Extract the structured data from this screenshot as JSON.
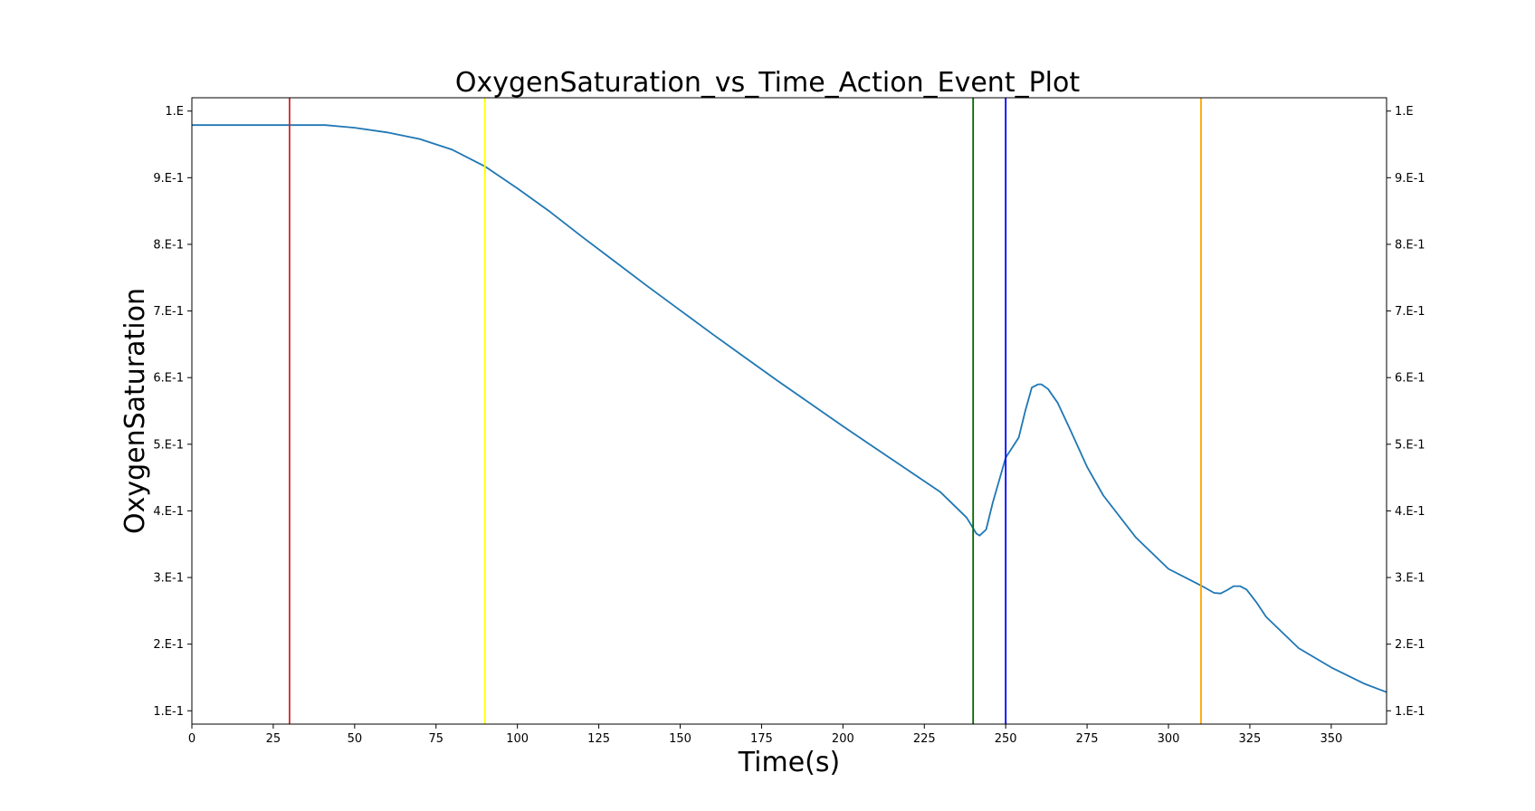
{
  "chart_data": {
    "type": "line",
    "title": "OxygenSaturation_vs_Time_Action_Event_Plot",
    "xlabel": "Time(s)",
    "ylabel": "OxygenSaturation",
    "xlim": [
      0,
      367
    ],
    "ylim": [
      0.08,
      1.02
    ],
    "x_ticks": [
      0,
      25,
      50,
      75,
      100,
      125,
      150,
      175,
      200,
      225,
      250,
      275,
      300,
      325,
      350
    ],
    "y_ticks": [
      {
        "value": 0.1,
        "label": "1.E-1"
      },
      {
        "value": 0.2,
        "label": "2.E-1"
      },
      {
        "value": 0.3,
        "label": "3.E-1"
      },
      {
        "value": 0.4,
        "label": "4.E-1"
      },
      {
        "value": 0.5,
        "label": "5.E-1"
      },
      {
        "value": 0.6,
        "label": "6.E-1"
      },
      {
        "value": 0.7,
        "label": "7.E-1"
      },
      {
        "value": 0.8,
        "label": "8.E-1"
      },
      {
        "value": 0.9,
        "label": "9.E-1"
      },
      {
        "value": 1.0,
        "label": "1.E"
      }
    ],
    "right_axis_ticks": true,
    "grid": false,
    "series": [
      {
        "color": "#1f77b4",
        "x": [
          0,
          10,
          20,
          30,
          41,
          50,
          60,
          70,
          80,
          90,
          100,
          110,
          120,
          130,
          140,
          150,
          160,
          170,
          180,
          190,
          200,
          210,
          220,
          230,
          238,
          241,
          242,
          244,
          246,
          248,
          250,
          252,
          254,
          256,
          258,
          260,
          261,
          263,
          266,
          270,
          275,
          280,
          290,
          300,
          310,
          314,
          316,
          318,
          320,
          322,
          324,
          327,
          330,
          340,
          350,
          360,
          367
        ],
        "y": [
          0.979,
          0.979,
          0.979,
          0.979,
          0.979,
          0.975,
          0.968,
          0.958,
          0.942,
          0.917,
          0.884,
          0.849,
          0.811,
          0.774,
          0.737,
          0.701,
          0.665,
          0.63,
          0.595,
          0.561,
          0.527,
          0.494,
          0.461,
          0.428,
          0.39,
          0.366,
          0.363,
          0.372,
          0.412,
          0.446,
          0.48,
          0.495,
          0.51,
          0.55,
          0.585,
          0.59,
          0.59,
          0.583,
          0.562,
          0.52,
          0.466,
          0.423,
          0.36,
          0.313,
          0.288,
          0.277,
          0.276,
          0.281,
          0.287,
          0.287,
          0.282,
          0.263,
          0.241,
          0.194,
          0.165,
          0.141,
          0.128
        ]
      }
    ],
    "event_lines": [
      {
        "x": 30,
        "color": "#d62728"
      },
      {
        "x": 90,
        "color": "#ffff00"
      },
      {
        "x": 240,
        "color": "#006400"
      },
      {
        "x": 250,
        "color": "#0000ff"
      },
      {
        "x": 310,
        "color": "#ffa500"
      }
    ]
  }
}
